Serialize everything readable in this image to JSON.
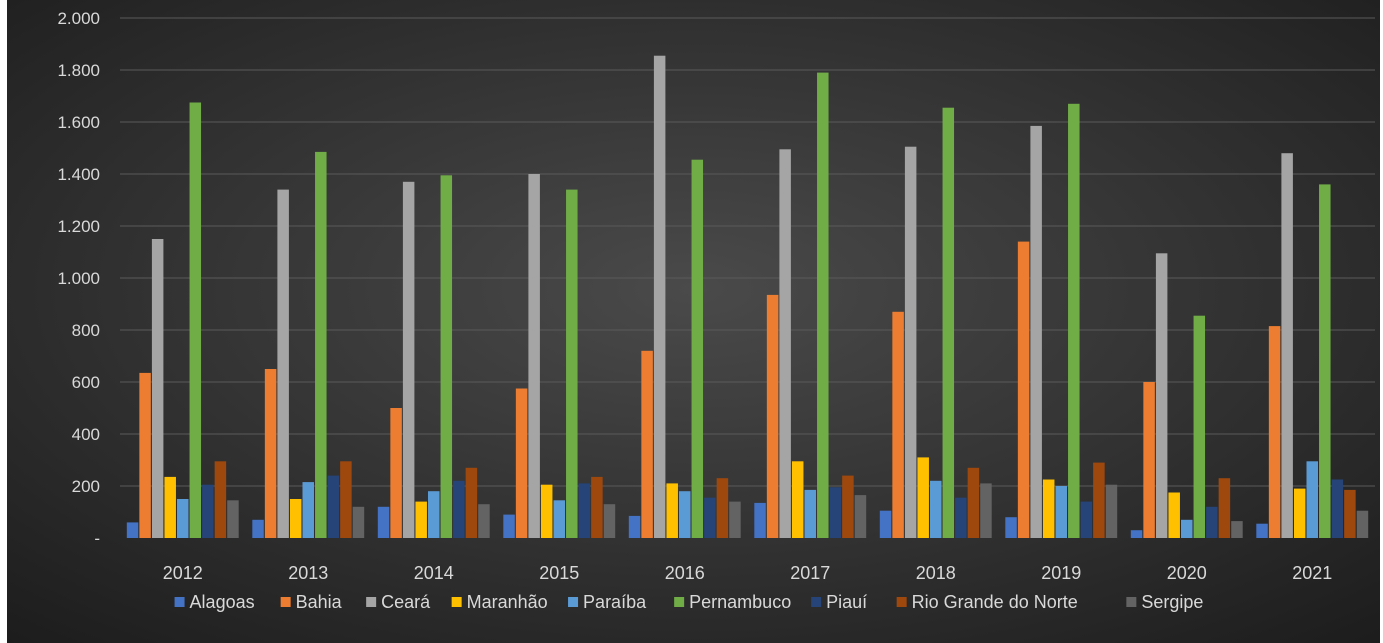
{
  "chart_data": {
    "type": "bar",
    "title": "",
    "xlabel": "",
    "ylabel": "",
    "categories": [
      "2012",
      "2013",
      "2014",
      "2015",
      "2016",
      "2017",
      "2018",
      "2019",
      "2020",
      "2021"
    ],
    "ylim": [
      0,
      2000
    ],
    "y_ticks": [
      0,
      200,
      400,
      600,
      800,
      1000,
      1200,
      1400,
      1600,
      1800,
      2000
    ],
    "y_tick_labels": [
      "-",
      "200",
      "400",
      "600",
      "800",
      "1.000",
      "1.200",
      "1.400",
      "1.600",
      "1.800",
      "2.000"
    ],
    "grid": true,
    "legend_position": "bottom",
    "series": [
      {
        "name": "Alagoas",
        "color": "#4472c4",
        "values": [
          60,
          70,
          120,
          90,
          85,
          135,
          105,
          80,
          30,
          55
        ]
      },
      {
        "name": "Bahia",
        "color": "#ed7d31",
        "values": [
          635,
          650,
          500,
          575,
          720,
          935,
          870,
          1140,
          600,
          815
        ]
      },
      {
        "name": "Ceará",
        "color": "#a5a5a5",
        "values": [
          1150,
          1340,
          1370,
          1400,
          1855,
          1495,
          1505,
          1585,
          1095,
          1480
        ]
      },
      {
        "name": "Maranhão",
        "color": "#ffc000",
        "values": [
          235,
          150,
          140,
          205,
          210,
          295,
          310,
          225,
          175,
          190
        ]
      },
      {
        "name": "Paraíba",
        "color": "#5b9bd5",
        "values": [
          150,
          215,
          180,
          145,
          180,
          185,
          220,
          200,
          70,
          295
        ]
      },
      {
        "name": "Pernambuco",
        "color": "#70ad47",
        "values": [
          1675,
          1485,
          1395,
          1340,
          1455,
          1790,
          1655,
          1670,
          855,
          1360
        ]
      },
      {
        "name": "Piauí",
        "color": "#264478",
        "values": [
          205,
          240,
          220,
          210,
          155,
          195,
          155,
          140,
          120,
          225
        ]
      },
      {
        "name": "Rio Grande do Norte",
        "color": "#9e480e",
        "values": [
          295,
          295,
          270,
          235,
          230,
          240,
          270,
          290,
          230,
          185
        ]
      },
      {
        "name": "Sergipe",
        "color": "#636363",
        "values": [
          145,
          120,
          130,
          130,
          140,
          165,
          210,
          205,
          65,
          105
        ]
      }
    ]
  }
}
